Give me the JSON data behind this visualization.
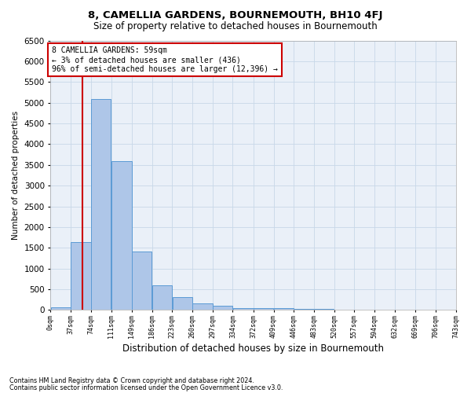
{
  "title": "8, CAMELLIA GARDENS, BOURNEMOUTH, BH10 4FJ",
  "subtitle": "Size of property relative to detached houses in Bournemouth",
  "xlabel": "Distribution of detached houses by size in Bournemouth",
  "ylabel": "Number of detached properties",
  "annotation_line1": "8 CAMELLIA GARDENS: 59sqm",
  "annotation_line2": "← 3% of detached houses are smaller (436)",
  "annotation_line3": "96% of semi-detached houses are larger (12,396) →",
  "property_size_sqm": 59,
  "bar_left_edges": [
    0,
    37,
    74,
    111,
    149,
    186,
    223,
    260,
    297,
    334,
    372,
    409,
    446,
    483,
    520,
    557,
    594,
    632,
    669,
    706
  ],
  "bar_widths": [
    37,
    37,
    37,
    38,
    37,
    37,
    37,
    37,
    37,
    38,
    37,
    37,
    37,
    37,
    37,
    37,
    38,
    37,
    37,
    37
  ],
  "bar_heights": [
    70,
    1630,
    5080,
    3590,
    1410,
    600,
    305,
    155,
    100,
    55,
    40,
    55,
    30,
    20,
    15,
    10,
    5,
    5,
    5,
    5
  ],
  "bar_color": "#aec6e8",
  "bar_edge_color": "#5b9bd5",
  "vline_x": 59,
  "vline_color": "#cc0000",
  "ylim": [
    0,
    6500
  ],
  "yticks": [
    0,
    500,
    1000,
    1500,
    2000,
    2500,
    3000,
    3500,
    4000,
    4500,
    5000,
    5500,
    6000,
    6500
  ],
  "xtick_labels": [
    "0sqm",
    "37sqm",
    "74sqm",
    "111sqm",
    "149sqm",
    "186sqm",
    "223sqm",
    "260sqm",
    "297sqm",
    "334sqm",
    "372sqm",
    "409sqm",
    "446sqm",
    "483sqm",
    "520sqm",
    "557sqm",
    "594sqm",
    "632sqm",
    "669sqm",
    "706sqm",
    "743sqm"
  ],
  "grid_color": "#c8d8e8",
  "bg_color": "#eaf0f8",
  "footnote1": "Contains HM Land Registry data © Crown copyright and database right 2024.",
  "footnote2": "Contains public sector information licensed under the Open Government Licence v3.0."
}
